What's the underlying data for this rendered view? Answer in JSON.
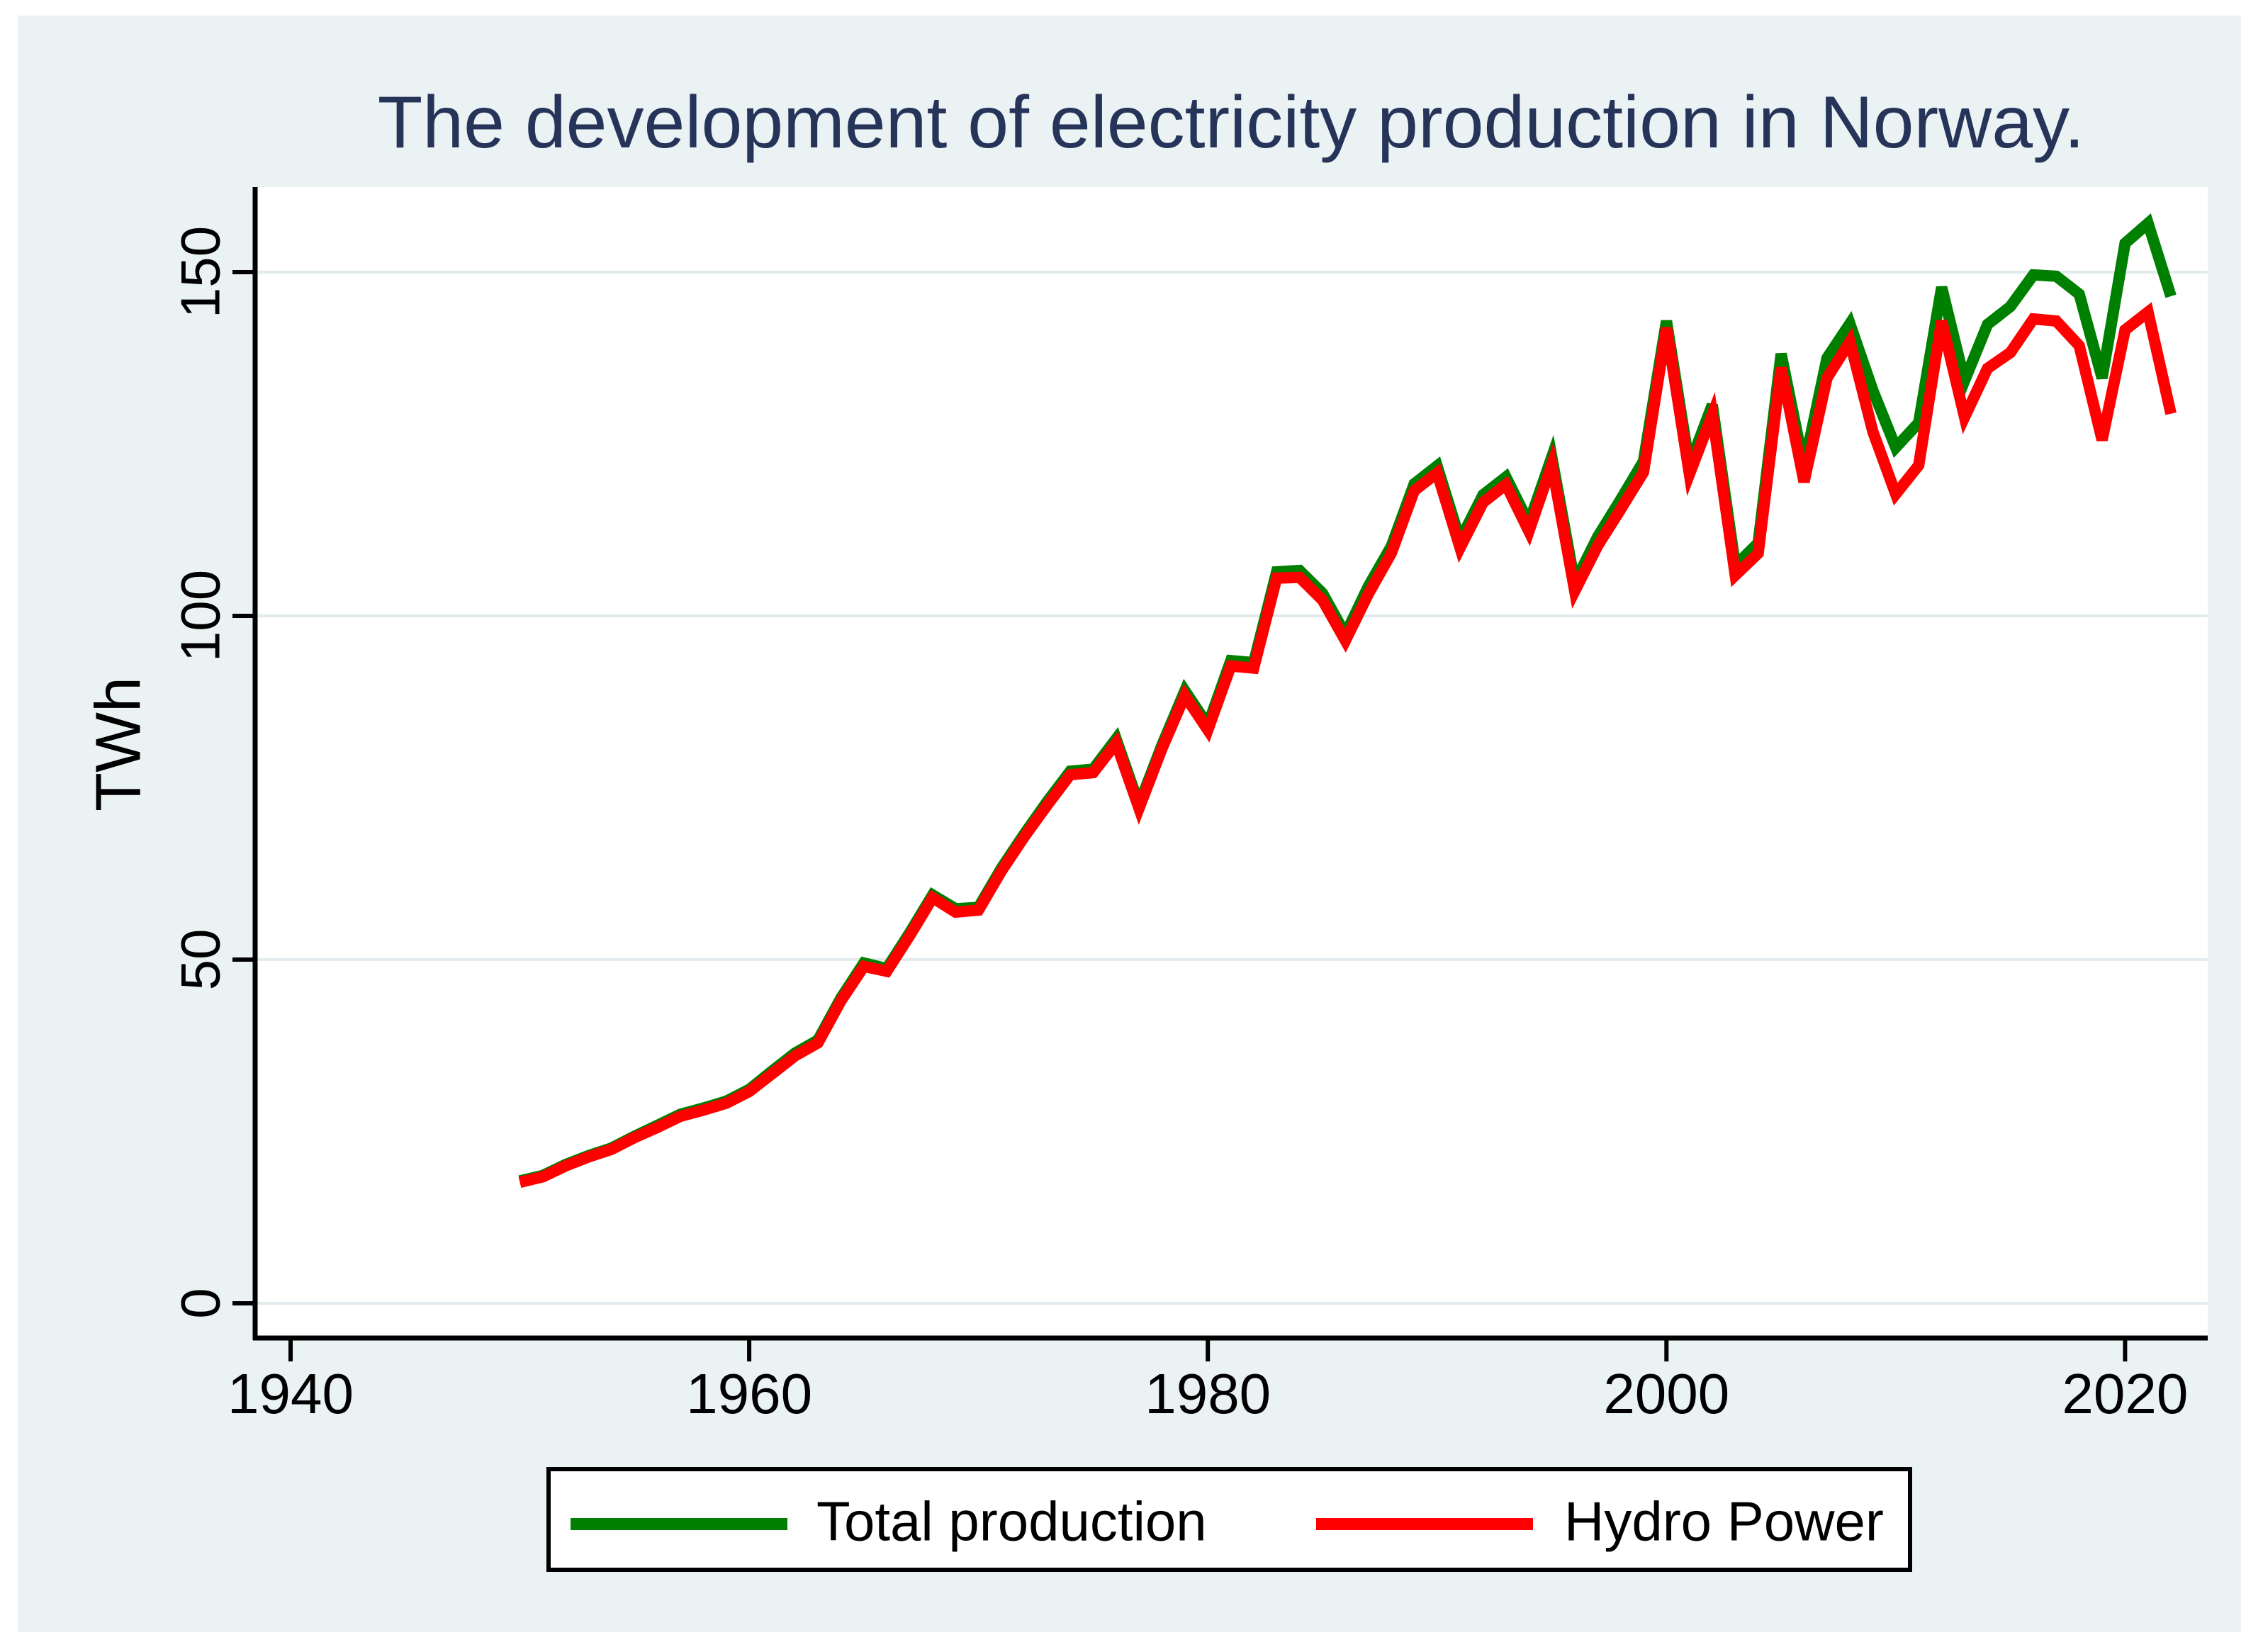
{
  "page": {
    "background_color": "#eaf2f3",
    "plot_background": "#ffffff",
    "gridline_color": "#e2ecef",
    "title_color": "#26345a"
  },
  "chart_data": {
    "type": "line",
    "title": "The development of electricity production in Norway.",
    "xlabel": "",
    "ylabel": "TWh",
    "xlim": [
      1938.4,
      2023.6
    ],
    "ylim": [
      -5,
      162
    ],
    "xticks": [
      1940,
      1960,
      1980,
      2000,
      2020
    ],
    "yticks": [
      0,
      50,
      100,
      150
    ],
    "grid": "horizontal",
    "legend_position": "bottom",
    "x": [
      1950,
      1951,
      1952,
      1953,
      1954,
      1955,
      1956,
      1957,
      1958,
      1959,
      1960,
      1961,
      1962,
      1963,
      1964,
      1965,
      1966,
      1967,
      1968,
      1969,
      1970,
      1971,
      1972,
      1973,
      1974,
      1975,
      1976,
      1977,
      1978,
      1979,
      1980,
      1981,
      1982,
      1983,
      1984,
      1985,
      1986,
      1987,
      1988,
      1989,
      1990,
      1991,
      1992,
      1993,
      1994,
      1995,
      1996,
      1997,
      1998,
      1999,
      2000,
      2001,
      2002,
      2003,
      2004,
      2005,
      2006,
      2007,
      2008,
      2009,
      2010,
      2011,
      2012,
      2013,
      2014,
      2015,
      2016,
      2017,
      2018,
      2019,
      2020,
      2021,
      2022
    ],
    "series": [
      {
        "name": "Total production",
        "color": "#008000",
        "values": [
          17.8,
          18.6,
          20.2,
          21.5,
          22.6,
          24.3,
          25.9,
          27.5,
          28.4,
          29.4,
          31.1,
          33.8,
          36.4,
          38.3,
          44.4,
          49.5,
          48.7,
          53.9,
          59.4,
          57.4,
          57.6,
          63.3,
          68.3,
          73.0,
          77.4,
          77.7,
          82.1,
          72.5,
          81.2,
          89.1,
          84.1,
          93.5,
          93.2,
          106.4,
          106.6,
          103.3,
          97.3,
          104.3,
          110.1,
          119.2,
          121.8,
          111.0,
          117.6,
          120.2,
          113.5,
          123.1,
          104.8,
          111.5,
          116.9,
          122.5,
          142.9,
          121.9,
          130.7,
          107.3,
          110.6,
          138.1,
          121.7,
          137.5,
          142.5,
          132.8,
          124.5,
          128.1,
          147.8,
          134.2,
          142.4,
          145.0,
          149.6,
          149.4,
          146.8,
          134.6,
          154.2,
          157.1,
          146.5
        ]
      },
      {
        "name": "Hydro Power",
        "color": "#ff0000",
        "values": [
          17.6,
          18.4,
          20.0,
          21.3,
          22.4,
          24.1,
          25.6,
          27.2,
          28.1,
          29.1,
          30.8,
          33.4,
          36.0,
          37.9,
          44.0,
          49.0,
          48.3,
          53.5,
          59.0,
          56.9,
          57.2,
          62.9,
          67.9,
          72.5,
          76.9,
          77.2,
          81.5,
          72.0,
          80.7,
          88.4,
          83.4,
          92.7,
          92.4,
          105.5,
          105.6,
          102.3,
          96.4,
          103.2,
          109.1,
          118.2,
          120.8,
          109.9,
          116.5,
          119.1,
          112.3,
          122.0,
          103.6,
          110.2,
          115.5,
          120.9,
          141.9,
          120.6,
          129.3,
          105.9,
          109.1,
          136.1,
          119.5,
          134.6,
          139.9,
          126.8,
          117.7,
          121.9,
          142.9,
          128.9,
          136.0,
          138.3,
          143.2,
          142.9,
          139.3,
          125.6,
          141.6,
          144.2,
          129.4
        ]
      }
    ]
  }
}
